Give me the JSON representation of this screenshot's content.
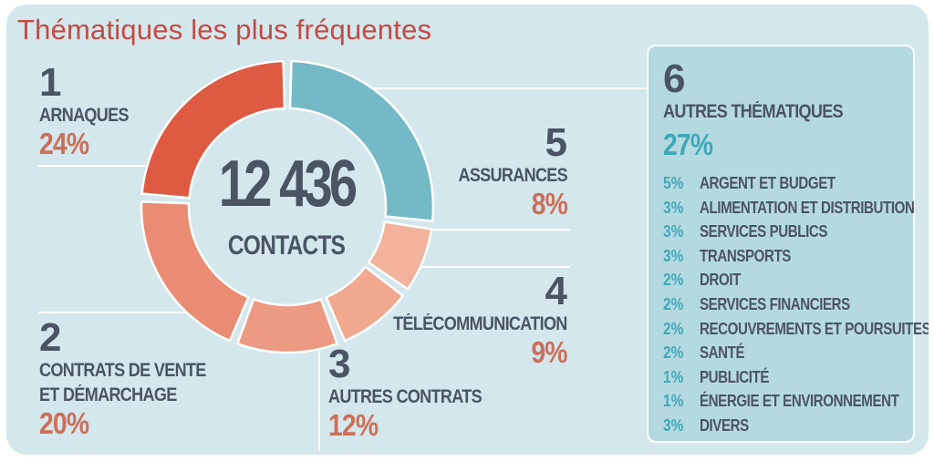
{
  "title": "Thématiques les plus fréquentes",
  "center": {
    "number": "12 436",
    "label": "CONTACTS"
  },
  "chart_data": {
    "type": "pie",
    "title": "Thématiques les plus fréquentes",
    "total_contacts": 12436,
    "slices": [
      {
        "rank": "1",
        "label": "ARNAQUES",
        "value": 24,
        "pct_label": "24%",
        "color": "#de5a43"
      },
      {
        "rank": "2",
        "label": "CONTRATS DE VENTE ET DÉMARCHAGE",
        "label_lines": [
          "CONTRATS DE VENTE",
          "ET DÉMARCHAGE"
        ],
        "value": 20,
        "pct_label": "20%",
        "color": "#ea8c74"
      },
      {
        "rank": "3",
        "label": "AUTRES CONTRATS",
        "value": 12,
        "pct_label": "12%",
        "color": "#ec9a82"
      },
      {
        "rank": "4",
        "label": "TÉLÉCOMMUNICATION",
        "value": 9,
        "pct_label": "9%",
        "color": "#f0a88f"
      },
      {
        "rank": "5",
        "label": "ASSURANCES",
        "value": 8,
        "pct_label": "8%",
        "color": "#f2b29c"
      },
      {
        "rank": "6",
        "label": "AUTRES THÉMATIQUES",
        "value": 27,
        "pct_label": "27%",
        "color": "#74b9c6"
      }
    ],
    "others_breakdown": [
      {
        "pct": "5%",
        "label": "ARGENT ET BUDGET"
      },
      {
        "pct": "3%",
        "label": "ALIMENTATION ET DISTRIBUTION"
      },
      {
        "pct": "3%",
        "label": "SERVICES PUBLICS"
      },
      {
        "pct": "3%",
        "label": "TRANSPORTS"
      },
      {
        "pct": "2%",
        "label": "DROIT"
      },
      {
        "pct": "2%",
        "label": "SERVICES FINANCIERS"
      },
      {
        "pct": "2%",
        "label": "RECOUVREMENTS ET POURSUITES"
      },
      {
        "pct": "2%",
        "label": "SANTÉ"
      },
      {
        "pct": "1%",
        "label": "PUBLICITÉ"
      },
      {
        "pct": "1%",
        "label": "ÉNERGIE ET ENVIRONNEMENT"
      },
      {
        "pct": "3%",
        "label": "DIVERS"
      }
    ]
  }
}
